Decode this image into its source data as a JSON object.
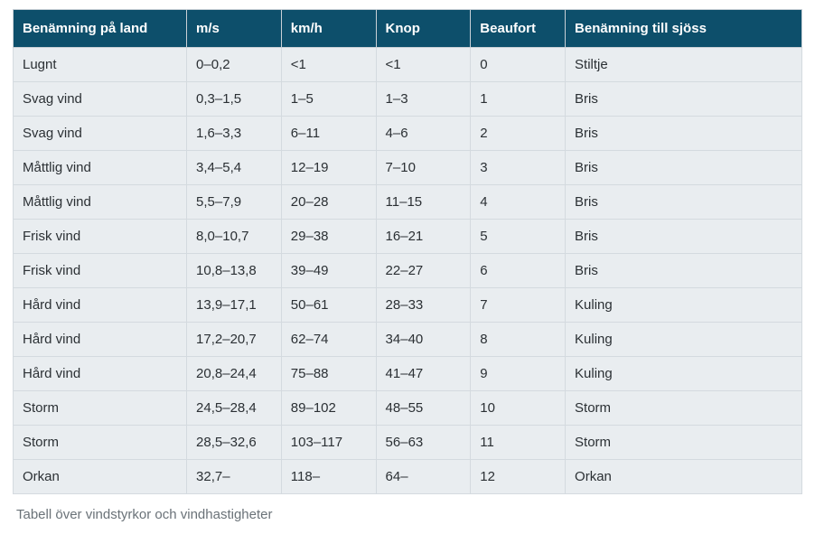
{
  "table": {
    "type": "table",
    "header_bg": "#0d4f6b",
    "header_text_color": "#ffffff",
    "row_bg": "#e9edf0",
    "row_text_color": "#2b3034",
    "border_color": "#d4dadf",
    "font_family": "Arial, Helvetica, sans-serif",
    "header_fontsize": 15,
    "cell_fontsize": 15,
    "column_widths_pct": [
      22,
      12,
      12,
      12,
      12,
      30
    ],
    "columns": [
      "Benämning på land",
      "m/s",
      "km/h",
      "Knop",
      "Beaufort",
      "Benämning till sjöss"
    ],
    "rows": [
      [
        "Lugnt",
        "0–0,2",
        "<1",
        "<1",
        "0",
        "Stiltje"
      ],
      [
        "Svag vind",
        "0,3–1,5",
        "1–5",
        "1–3",
        "1",
        "Bris"
      ],
      [
        "Svag vind",
        "1,6–3,3",
        "6–11",
        "4–6",
        "2",
        "Bris"
      ],
      [
        "Måttlig vind",
        "3,4–5,4",
        "12–19",
        "7–10",
        "3",
        "Bris"
      ],
      [
        "Måttlig vind",
        "5,5–7,9",
        "20–28",
        "11–15",
        "4",
        "Bris"
      ],
      [
        "Frisk vind",
        "8,0–10,7",
        "29–38",
        "16–21",
        "5",
        "Bris"
      ],
      [
        "Frisk vind",
        "10,8–13,8",
        "39–49",
        "22–27",
        "6",
        "Bris"
      ],
      [
        "Hård vind",
        "13,9–17,1",
        "50–61",
        "28–33",
        "7",
        "Kuling"
      ],
      [
        "Hård vind",
        "17,2–20,7",
        "62–74",
        "34–40",
        "8",
        "Kuling"
      ],
      [
        "Hård vind",
        "20,8–24,4",
        "75–88",
        "41–47",
        "9",
        "Kuling"
      ],
      [
        "Storm",
        "24,5–28,4",
        "89–102",
        "48–55",
        "10",
        "Storm"
      ],
      [
        "Storm",
        "28,5–32,6",
        "103–117",
        "56–63",
        "11",
        "Storm"
      ],
      [
        "Orkan",
        "32,7–",
        "118–",
        "64–",
        "12",
        "Orkan"
      ]
    ]
  },
  "caption": "Tabell över vindstyrkor och vindhastigheter",
  "caption_color": "#6a7278",
  "caption_fontsize": 15
}
